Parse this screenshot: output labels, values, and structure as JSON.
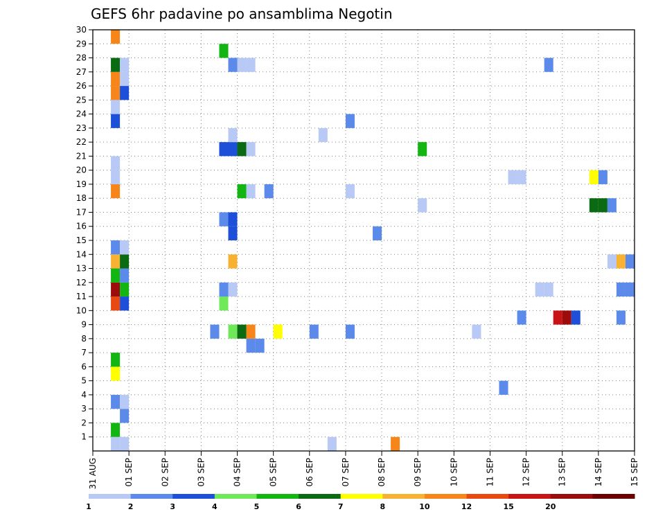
{
  "chart_data": {
    "type": "heatmap",
    "title": "GEFS 6hr padavine po ansamblima Negotin",
    "x_tick_labels": [
      "31 AUG",
      "01 SEP",
      "02 SEP",
      "03 SEP",
      "04 SEP",
      "05 SEP",
      "06 SEP",
      "07 SEP",
      "08 SEP",
      "09 SEP",
      "10 SEP",
      "11 SEP",
      "12 SEP",
      "13 SEP",
      "14 SEP",
      "15 SEP"
    ],
    "y_tick_labels": [
      "1",
      "2",
      "3",
      "4",
      "5",
      "6",
      "7",
      "8",
      "9",
      "10",
      "11",
      "12",
      "13",
      "14",
      "15",
      "16",
      "17",
      "18",
      "19",
      "20",
      "21",
      "22",
      "23",
      "24",
      "25",
      "26",
      "27",
      "28",
      "29",
      "30"
    ],
    "x_range_days": [
      0,
      15
    ],
    "y_range": [
      0,
      30
    ],
    "grid": true,
    "colorbar": {
      "labels": [
        "1",
        "2",
        "3",
        "4",
        "5",
        "6",
        "7",
        "8",
        "10",
        "12",
        "15",
        "20"
      ],
      "colors": [
        "#b7c9f4",
        "#5b8aea",
        "#1d4fd9",
        "#6fe85a",
        "#12b512",
        "#0b6b12",
        "#ffff00",
        "#f7b233",
        "#f7861a",
        "#e84812",
        "#c81414",
        "#9b0d0d",
        "#6b0000"
      ]
    },
    "cells": [
      {
        "m": 0,
        "s": 2,
        "c": 0
      },
      {
        "m": 0,
        "s": 3,
        "c": 0
      },
      {
        "m": 0,
        "s": 26,
        "c": 0
      },
      {
        "m": 0,
        "s": 33,
        "c": 8
      },
      {
        "m": 1,
        "s": 2,
        "c": 4
      },
      {
        "m": 2,
        "s": 3,
        "c": 1
      },
      {
        "m": 3,
        "s": 2,
        "c": 1
      },
      {
        "m": 3,
        "s": 3,
        "c": 0
      },
      {
        "m": 4,
        "s": 45,
        "c": 1
      },
      {
        "m": 5,
        "s": 2,
        "c": 6
      },
      {
        "m": 6,
        "s": 2,
        "c": 4
      },
      {
        "m": 7,
        "s": 17,
        "c": 1
      },
      {
        "m": 7,
        "s": 18,
        "c": 1
      },
      {
        "m": 8,
        "s": 13,
        "c": 1
      },
      {
        "m": 8,
        "s": 15,
        "c": 3
      },
      {
        "m": 8,
        "s": 16,
        "c": 5
      },
      {
        "m": 8,
        "s": 17,
        "c": 8
      },
      {
        "m": 8,
        "s": 20,
        "c": 6
      },
      {
        "m": 8,
        "s": 24,
        "c": 1
      },
      {
        "m": 8,
        "s": 28,
        "c": 1
      },
      {
        "m": 8,
        "s": 42,
        "c": 0
      },
      {
        "m": 9,
        "s": 47,
        "c": 1
      },
      {
        "m": 9,
        "s": 51,
        "c": 10
      },
      {
        "m": 9,
        "s": 52,
        "c": 11
      },
      {
        "m": 9,
        "s": 53,
        "c": 2
      },
      {
        "m": 9,
        "s": 58,
        "c": 1
      },
      {
        "m": 10,
        "s": 2,
        "c": 9
      },
      {
        "m": 10,
        "s": 3,
        "c": 2
      },
      {
        "m": 10,
        "s": 14,
        "c": 3
      },
      {
        "m": 11,
        "s": 2,
        "c": 11
      },
      {
        "m": 11,
        "s": 3,
        "c": 4
      },
      {
        "m": 11,
        "s": 14,
        "c": 1
      },
      {
        "m": 11,
        "s": 15,
        "c": 0
      },
      {
        "m": 11,
        "s": 49,
        "c": 0
      },
      {
        "m": 11,
        "s": 50,
        "c": 0
      },
      {
        "m": 11,
        "s": 58,
        "c": 1
      },
      {
        "m": 11,
        "s": 59,
        "c": 1
      },
      {
        "m": 12,
        "s": 2,
        "c": 4
      },
      {
        "m": 12,
        "s": 3,
        "c": 1
      },
      {
        "m": 13,
        "s": 2,
        "c": 7
      },
      {
        "m": 13,
        "s": 3,
        "c": 5
      },
      {
        "m": 13,
        "s": 15,
        "c": 7
      },
      {
        "m": 13,
        "s": 57,
        "c": 0
      },
      {
        "m": 13,
        "s": 58,
        "c": 7
      },
      {
        "m": 13,
        "s": 59,
        "c": 1
      },
      {
        "m": 14,
        "s": 2,
        "c": 1
      },
      {
        "m": 14,
        "s": 3,
        "c": 0
      },
      {
        "m": 15,
        "s": 15,
        "c": 2
      },
      {
        "m": 15,
        "s": 31,
        "c": 1
      },
      {
        "m": 16,
        "s": 14,
        "c": 1
      },
      {
        "m": 16,
        "s": 15,
        "c": 2
      },
      {
        "m": 17,
        "s": 36,
        "c": 0
      },
      {
        "m": 17,
        "s": 55,
        "c": 5
      },
      {
        "m": 17,
        "s": 56,
        "c": 5
      },
      {
        "m": 17,
        "s": 57,
        "c": 1
      },
      {
        "m": 18,
        "s": 2,
        "c": 8
      },
      {
        "m": 18,
        "s": 16,
        "c": 4
      },
      {
        "m": 18,
        "s": 17,
        "c": 0
      },
      {
        "m": 18,
        "s": 19,
        "c": 1
      },
      {
        "m": 18,
        "s": 28,
        "c": 0
      },
      {
        "m": 19,
        "s": 2,
        "c": 0
      },
      {
        "m": 19,
        "s": 46,
        "c": 0
      },
      {
        "m": 19,
        "s": 47,
        "c": 0
      },
      {
        "m": 19,
        "s": 55,
        "c": 6
      },
      {
        "m": 19,
        "s": 56,
        "c": 1
      },
      {
        "m": 20,
        "s": 2,
        "c": 0
      },
      {
        "m": 21,
        "s": 14,
        "c": 2
      },
      {
        "m": 21,
        "s": 15,
        "c": 2
      },
      {
        "m": 21,
        "s": 16,
        "c": 5
      },
      {
        "m": 21,
        "s": 17,
        "c": 0
      },
      {
        "m": 21,
        "s": 36,
        "c": 4
      },
      {
        "m": 22,
        "s": 15,
        "c": 0
      },
      {
        "m": 22,
        "s": 25,
        "c": 0
      },
      {
        "m": 23,
        "s": 2,
        "c": 2
      },
      {
        "m": 23,
        "s": 28,
        "c": 1
      },
      {
        "m": 24,
        "s": 2,
        "c": 0
      },
      {
        "m": 25,
        "s": 2,
        "c": 8
      },
      {
        "m": 25,
        "s": 3,
        "c": 2
      },
      {
        "m": 26,
        "s": 2,
        "c": 8
      },
      {
        "m": 26,
        "s": 3,
        "c": 0
      },
      {
        "m": 27,
        "s": 2,
        "c": 5
      },
      {
        "m": 27,
        "s": 3,
        "c": 0
      },
      {
        "m": 27,
        "s": 15,
        "c": 1
      },
      {
        "m": 27,
        "s": 16,
        "c": 0
      },
      {
        "m": 27,
        "s": 17,
        "c": 0
      },
      {
        "m": 27,
        "s": 50,
        "c": 1
      },
      {
        "m": 28,
        "s": 14,
        "c": 4
      },
      {
        "m": 29,
        "s": 2,
        "c": 8
      }
    ]
  }
}
